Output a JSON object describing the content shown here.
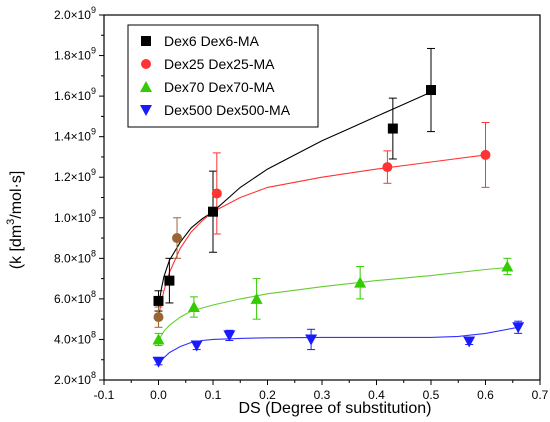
{
  "chart_data": {
    "type": "scatter",
    "xlabel": "DS  (Degree of substitution)",
    "ylabel_main": "(k  [dm",
    "ylabel_sup": "3",
    "ylabel_rest": "/mol·s]",
    "xlim": [
      -0.1,
      0.7
    ],
    "ylim": [
      200000000,
      2000000000
    ],
    "x_ticks": [
      -0.1,
      0.0,
      0.1,
      0.2,
      0.3,
      0.4,
      0.5,
      0.6,
      0.7
    ],
    "x_tick_labels": [
      "-0.1",
      "0.0",
      "0.1",
      "0.2",
      "0.3",
      "0.4",
      "0.5",
      "0.6",
      "0.7"
    ],
    "y_ticks": [
      200000000,
      400000000,
      600000000,
      800000000,
      1000000000,
      1200000000,
      1400000000,
      1600000000,
      1800000000,
      2000000000
    ],
    "y_tick_labels": [
      {
        "mant": "2.0×10",
        "exp": "8"
      },
      {
        "mant": "4.0×10",
        "exp": "8"
      },
      {
        "mant": "6.0×10",
        "exp": "8"
      },
      {
        "mant": "8.0×10",
        "exp": "8"
      },
      {
        "mant": "1.0×10",
        "exp": "9"
      },
      {
        "mant": "1.2×10",
        "exp": "9"
      },
      {
        "mant": "1.4×10",
        "exp": "9"
      },
      {
        "mant": "1.6×10",
        "exp": "9"
      },
      {
        "mant": "1.8×10",
        "exp": "9"
      },
      {
        "mant": "2.0×10",
        "exp": "9"
      }
    ],
    "legend_position": "top-left",
    "series": [
      {
        "name": "Dex6 Dex6-MA",
        "marker": "square",
        "color": "#000000",
        "fit_color": "#000000",
        "x": [
          0.0,
          0.02,
          0.1,
          0.43,
          0.5
        ],
        "y": [
          590000000,
          690000000,
          1030000000,
          1440000000,
          1630000000
        ],
        "err": [
          50000000,
          110000000,
          200000000,
          150000000,
          205000000
        ],
        "fit_x": [
          0.0,
          0.005,
          0.01,
          0.02,
          0.04,
          0.06,
          0.08,
          0.1,
          0.15,
          0.2,
          0.25,
          0.3,
          0.35,
          0.4,
          0.45,
          0.5
        ],
        "fit_y": [
          560000000,
          645000000,
          710000000,
          790000000,
          880000000,
          950000000,
          995000000,
          1030000000,
          1150000000,
          1240000000,
          1310000000,
          1380000000,
          1440000000,
          1500000000,
          1560000000,
          1620000000
        ]
      },
      {
        "name": "Dex25 Dex25-MA",
        "marker": "circle",
        "color": "#ff3333",
        "fit_color": "#ff3333",
        "x": [
          0.0,
          0.034,
          0.107,
          0.42,
          0.6
        ],
        "y": [
          510000000,
          900000000,
          1120000000,
          1250000000,
          1310000000
        ],
        "err": [
          50000000,
          100000000,
          200000000,
          80000000,
          160000000
        ],
        "point_colors": [
          "#996633",
          "#996633",
          "#ff3333",
          "#ff3333",
          "#ff3333"
        ],
        "fit_x": [
          0.0,
          0.005,
          0.01,
          0.02,
          0.04,
          0.06,
          0.08,
          0.1,
          0.15,
          0.2,
          0.3,
          0.4,
          0.5,
          0.6
        ],
        "fit_y": [
          510000000,
          580000000,
          640000000,
          730000000,
          850000000,
          930000000,
          985000000,
          1030000000,
          1100000000,
          1150000000,
          1200000000,
          1240000000,
          1275000000,
          1310000000
        ]
      },
      {
        "name": "Dex70 Dex70-MA",
        "marker": "triangle-up",
        "color": "#33cc00",
        "fit_color": "#66cc33",
        "x": [
          0.0,
          0.065,
          0.18,
          0.37,
          0.64
        ],
        "y": [
          400000000,
          560000000,
          600000000,
          680000000,
          760000000
        ],
        "err": [
          30000000,
          50000000,
          100000000,
          80000000,
          40000000
        ],
        "fit_x": [
          0.0,
          0.01,
          0.02,
          0.04,
          0.06,
          0.1,
          0.15,
          0.2,
          0.3,
          0.4,
          0.5,
          0.6,
          0.64
        ],
        "fit_y": [
          395000000,
          440000000,
          470000000,
          510000000,
          540000000,
          570000000,
          600000000,
          625000000,
          660000000,
          690000000,
          715000000,
          745000000,
          755000000
        ]
      },
      {
        "name": "Dex500 Dex500-MA",
        "marker": "triangle-down",
        "color": "#1a1aff",
        "fit_color": "#3333ff",
        "x": [
          0.0,
          0.07,
          0.13,
          0.28,
          0.57,
          0.66
        ],
        "y": [
          290000000,
          370000000,
          420000000,
          400000000,
          390000000,
          460000000
        ],
        "err": [
          15000000,
          20000000,
          25000000,
          50000000,
          15000000,
          30000000
        ],
        "fit_x": [
          0.0,
          0.01,
          0.02,
          0.04,
          0.06,
          0.08,
          0.1,
          0.15,
          0.2,
          0.3,
          0.4,
          0.5,
          0.55,
          0.6,
          0.66
        ],
        "fit_y": [
          280000000,
          310000000,
          335000000,
          365000000,
          385000000,
          395000000,
          400000000,
          405000000,
          408000000,
          410000000,
          410000000,
          410000000,
          415000000,
          430000000,
          460000000
        ]
      }
    ]
  }
}
